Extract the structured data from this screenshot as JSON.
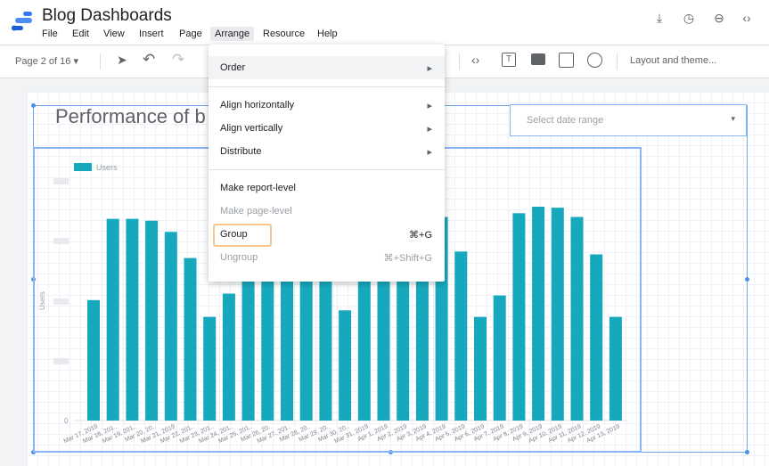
{
  "app": {
    "title": "Blog Dashboards"
  },
  "menubar": [
    "File",
    "Edit",
    "View",
    "Insert",
    "Page",
    "Arrange",
    "Resource",
    "Help"
  ],
  "top_icons": [
    "download-icon",
    "history-icon",
    "link-icon",
    "embed-icon"
  ],
  "toolbar": {
    "page_indicator": "Page 2 of 16",
    "layout_button": "Layout and theme..."
  },
  "report": {
    "title": "Performance of b",
    "date_range_placeholder": "Select date range"
  },
  "arrange_menu": {
    "order": "Order",
    "align_horizontally": "Align horizontally",
    "align_vertically": "Align vertically",
    "distribute": "Distribute",
    "make_report_level": "Make report-level",
    "make_page_level": "Make page-level",
    "group": "Group",
    "group_shortcut": "⌘+G",
    "ungroup": "Ungroup",
    "ungroup_shortcut": "⌘+Shift+G"
  },
  "chart_data": {
    "type": "bar",
    "legend": [
      "Users"
    ],
    "ylabel": "Users",
    "y_tick_visible": "0",
    "color": "#16a9bd",
    "categories": [
      "Mar 17, 2019",
      "Mar 18, 201..",
      "Mar 19, 201..",
      "Mar 20, 20..",
      "Mar 21, 2019",
      "Mar 22, 201..",
      "Mar 23, 201..",
      "Mar 24, 201..",
      "Mar 25, 201..",
      "Mar 26, 20..",
      "Mar 27, 201..",
      "Mar 28, 20..",
      "Mar 29, 20..",
      "Mar 30, 20..",
      "Mar 31, 2019",
      "Apr 1, 2019",
      "Apr 2, 2019",
      "Apr 3, 2019",
      "Apr 4, 2019",
      "Apr 5, 2019",
      "Apr 6, 2019",
      "Apr 7, 2019",
      "Apr 8, 2019",
      "Apr 9, 2019",
      "Apr 10, 2019",
      "Apr 11, 2019",
      "Apr 12, 2019",
      "Apr 13, 2019"
    ],
    "values": [
      129,
      216,
      216,
      214,
      202,
      174,
      111,
      136,
      185,
      179,
      180,
      185,
      170,
      118,
      165,
      174,
      190,
      210,
      218,
      181,
      111,
      134,
      222,
      229,
      228,
      218,
      178,
      111
    ],
    "ylim": [
      0,
      250
    ]
  }
}
